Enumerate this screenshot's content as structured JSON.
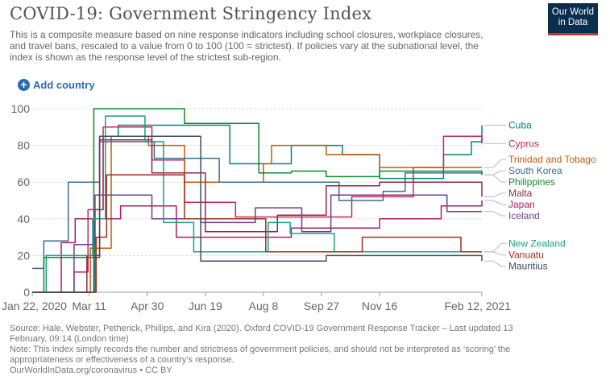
{
  "header": {
    "title": "COVID-19: Government Stringency Index",
    "subtitle": "This is a composite measure based on nine response indicators including school closures, workplace closures, and travel bans, rescaled to a value from 0 to 100 (100 = strictest). If policies vary at the subnational level, the index is shown as the response level of the strictest sub-region.",
    "logo_line1": "Our World",
    "logo_line2": "in Data"
  },
  "controls": {
    "add_country_label": "Add country"
  },
  "footer": {
    "source": "Source: Hale, Webster, Petherick, Phillips, and Kira (2020). Oxford COVID-19 Government Response Tracker – Last updated 13 February, 09:14 (London time)",
    "note": "Note: This index simply records the number and strictness of government policies, and should not be interpreted as ‘scoring’ the appropriateness or effectiveness of a country’s response.",
    "url": "OurWorldInData.org/coronavirus • CC BY"
  },
  "chart_data": {
    "type": "line",
    "ylim": [
      0,
      100
    ],
    "yticks": [
      0,
      20,
      40,
      60,
      80,
      100
    ],
    "xlim": [
      "2020-01-22",
      "2021-02-12"
    ],
    "xticks": [
      {
        "date": "2020-01-22",
        "label": "Jan 22, 2020"
      },
      {
        "date": "2020-03-11",
        "label": "Mar 11"
      },
      {
        "date": "2020-04-30",
        "label": "Apr 30"
      },
      {
        "date": "2020-06-19",
        "label": "Jun 19"
      },
      {
        "date": "2020-08-08",
        "label": "Aug 8"
      },
      {
        "date": "2020-09-27",
        "label": "Sep 27"
      },
      {
        "date": "2020-11-16",
        "label": "Nov 16"
      },
      {
        "date": "2021-02-12",
        "label": "Feb 12, 2021"
      }
    ],
    "grid": true,
    "legend": "right",
    "series": [
      {
        "name": "Cuba",
        "color": "#00847e",
        "points": [
          [
            "2020-01-22",
            0
          ],
          [
            "2020-03-10",
            0
          ],
          [
            "2020-03-16",
            45
          ],
          [
            "2020-03-23",
            85
          ],
          [
            "2020-04-05",
            91
          ],
          [
            "2020-06-20",
            91
          ],
          [
            "2020-07-10",
            70
          ],
          [
            "2020-08-08",
            70
          ],
          [
            "2020-09-01",
            80
          ],
          [
            "2020-10-15",
            75
          ],
          [
            "2020-11-16",
            62
          ],
          [
            "2021-01-10",
            75
          ],
          [
            "2021-02-03",
            82
          ],
          [
            "2021-02-12",
            91
          ]
        ]
      },
      {
        "name": "Cyprus",
        "color": "#c42a56",
        "points": [
          [
            "2020-01-22",
            0
          ],
          [
            "2020-02-27",
            11
          ],
          [
            "2020-03-10",
            45
          ],
          [
            "2020-03-23",
            90
          ],
          [
            "2020-05-04",
            72
          ],
          [
            "2020-06-01",
            49
          ],
          [
            "2020-07-15",
            41
          ],
          [
            "2020-09-15",
            41
          ],
          [
            "2020-10-23",
            52
          ],
          [
            "2020-12-15",
            68
          ],
          [
            "2021-01-10",
            85
          ],
          [
            "2021-02-12",
            81
          ]
        ]
      },
      {
        "name": "Trinidad and Tobago",
        "color": "#c15b09",
        "points": [
          [
            "2020-01-22",
            0
          ],
          [
            "2020-03-12",
            24
          ],
          [
            "2020-03-30",
            85
          ],
          [
            "2020-05-01",
            80
          ],
          [
            "2020-06-01",
            60
          ],
          [
            "2020-08-08",
            70
          ],
          [
            "2020-08-15",
            80
          ],
          [
            "2020-10-01",
            75
          ],
          [
            "2020-11-16",
            68
          ],
          [
            "2021-02-12",
            68
          ]
        ]
      },
      {
        "name": "South Korea",
        "color": "#3a6d8f",
        "points": [
          [
            "2020-01-22",
            13
          ],
          [
            "2020-02-01",
            28
          ],
          [
            "2020-02-22",
            60
          ],
          [
            "2020-03-20",
            82
          ],
          [
            "2020-05-06",
            73
          ],
          [
            "2020-07-01",
            60
          ],
          [
            "2020-08-23",
            60
          ],
          [
            "2020-10-12",
            50
          ],
          [
            "2020-11-19",
            55
          ],
          [
            "2020-12-08",
            65
          ],
          [
            "2021-02-12",
            64
          ]
        ]
      },
      {
        "name": "Philippines",
        "color": "#0f8a2c",
        "points": [
          [
            "2020-01-22",
            0
          ],
          [
            "2020-02-01",
            19
          ],
          [
            "2020-03-15",
            100
          ],
          [
            "2020-05-01",
            100
          ],
          [
            "2020-06-01",
            92
          ],
          [
            "2020-08-04",
            65
          ],
          [
            "2020-09-01",
            66
          ],
          [
            "2020-10-01",
            63
          ],
          [
            "2020-11-16",
            66
          ],
          [
            "2021-02-12",
            64
          ]
        ]
      },
      {
        "name": "Malta",
        "color": "#8e2a43",
        "points": [
          [
            "2020-01-22",
            0
          ],
          [
            "2020-03-09",
            20
          ],
          [
            "2020-03-20",
            83
          ],
          [
            "2020-05-04",
            65
          ],
          [
            "2020-06-19",
            33
          ],
          [
            "2020-08-20",
            42
          ],
          [
            "2020-10-01",
            58
          ],
          [
            "2020-11-16",
            60
          ],
          [
            "2021-02-12",
            52
          ]
        ]
      },
      {
        "name": "Japan",
        "color": "#b01c5c",
        "points": [
          [
            "2020-01-22",
            0
          ],
          [
            "2020-02-16",
            27
          ],
          [
            "2020-02-28",
            40
          ],
          [
            "2020-04-07",
            47
          ],
          [
            "2020-05-25",
            30
          ],
          [
            "2020-07-01",
            30
          ],
          [
            "2020-09-01",
            35
          ],
          [
            "2020-11-16",
            40
          ],
          [
            "2021-01-08",
            47
          ],
          [
            "2021-02-12",
            50
          ]
        ]
      },
      {
        "name": "Iceland",
        "color": "#6d3e91",
        "points": [
          [
            "2020-01-22",
            0
          ],
          [
            "2020-02-27",
            26
          ],
          [
            "2020-03-16",
            53
          ],
          [
            "2020-05-04",
            40
          ],
          [
            "2020-06-15",
            38
          ],
          [
            "2020-08-01",
            46
          ],
          [
            "2020-09-10",
            33
          ],
          [
            "2020-10-05",
            53
          ],
          [
            "2020-11-16",
            53
          ],
          [
            "2021-01-13",
            44
          ],
          [
            "2021-02-12",
            44
          ]
        ]
      },
      {
        "name": "New Zealand",
        "color": "#18a084",
        "points": [
          [
            "2020-01-22",
            0
          ],
          [
            "2020-02-03",
            20
          ],
          [
            "2020-03-14",
            40
          ],
          [
            "2020-03-25",
            96
          ],
          [
            "2020-04-28",
            82
          ],
          [
            "2020-05-14",
            38
          ],
          [
            "2020-06-09",
            22
          ],
          [
            "2020-08-12",
            38
          ],
          [
            "2020-08-31",
            32
          ],
          [
            "2020-10-08",
            22
          ],
          [
            "2021-02-12",
            22
          ]
        ]
      },
      {
        "name": "Vanuatu",
        "color": "#a0321c",
        "points": [
          [
            "2020-01-22",
            0
          ],
          [
            "2020-03-17",
            30
          ],
          [
            "2020-03-26",
            64
          ],
          [
            "2020-06-01",
            40
          ],
          [
            "2020-08-10",
            22
          ],
          [
            "2020-11-01",
            30
          ],
          [
            "2021-01-20",
            30
          ],
          [
            "2021-01-25",
            22
          ],
          [
            "2021-02-12",
            22
          ]
        ]
      },
      {
        "name": "Mauritius",
        "color": "#3c4e66",
        "points": [
          [
            "2020-01-22",
            0
          ],
          [
            "2020-03-15",
            19
          ],
          [
            "2020-03-20",
            85
          ],
          [
            "2020-05-15",
            85
          ],
          [
            "2020-06-15",
            17
          ],
          [
            "2020-09-01",
            17
          ],
          [
            "2020-10-01",
            20
          ],
          [
            "2021-02-12",
            17
          ]
        ]
      }
    ]
  }
}
